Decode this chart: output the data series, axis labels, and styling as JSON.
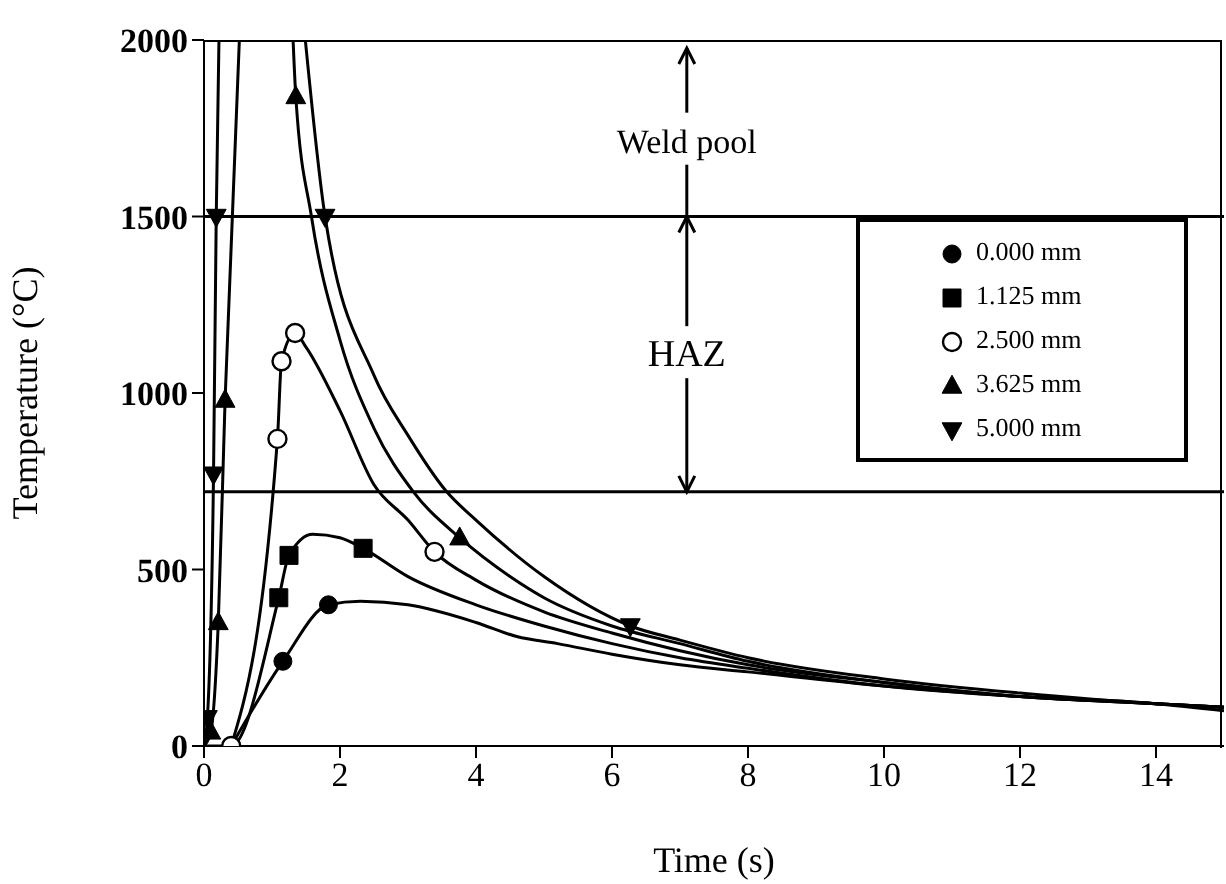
{
  "chart_data": {
    "type": "line",
    "xlabel": "Time (s)",
    "ylabel": "Temperature (°C)",
    "xlim": [
      0,
      15
    ],
    "xticks": [
      0,
      2,
      4,
      6,
      8,
      10,
      12,
      14
    ],
    "ylim": [
      0,
      2000
    ],
    "yticks": [
      0,
      500,
      1000,
      1500,
      2000
    ],
    "legend": "right",
    "grid": false,
    "line_style": "solid",
    "ref_lines": [
      {
        "axis": "y",
        "value": 1500,
        "color": "#000000"
      },
      {
        "axis": "y",
        "value": 720,
        "color": "#000000"
      }
    ],
    "annotations": [
      {
        "text": "Weld pool",
        "x": 7.1,
        "y": 1500
      },
      {
        "text": "HAZ",
        "x": 7.1,
        "y": 720
      }
    ],
    "series": [
      {
        "color": "#000000",
        "marker": "none",
        "x": [
          0.43,
          1.16,
          1.83,
          2.3,
          3,
          4,
          4.6,
          5.2,
          6,
          7,
          8,
          10,
          12,
          14,
          15
        ],
        "values": [
          10,
          240,
          400,
          410,
          400,
          350,
          310,
          290,
          260,
          230,
          210,
          170,
          140,
          120,
          100
        ]
      },
      {
        "color": "#000000",
        "marker": "none",
        "x": [
          0,
          0.4,
          1.1,
          1.25,
          1.6,
          2,
          2.34,
          3,
          4,
          5,
          6,
          7,
          8,
          10,
          12,
          14,
          15
        ],
        "values": [
          0,
          0,
          420,
          540,
          600,
          590,
          560,
          480,
          400,
          340,
          290,
          250,
          220,
          170,
          140,
          120,
          110
        ]
      },
      {
        "color": "#000000",
        "marker": "none",
        "x": [
          0.4,
          1.08,
          1.14,
          1.34,
          1.5,
          2,
          2.5,
          3,
          3.39,
          4,
          5,
          6,
          7,
          8,
          10,
          12,
          14,
          15
        ],
        "values": [
          0,
          870,
          1090,
          1170,
          1130,
          950,
          740,
          640,
          550,
          470,
          380,
          320,
          270,
          230,
          180,
          140,
          120,
          110
        ]
      },
      {
        "color": "#000000",
        "marker": "none",
        "x": [
          0,
          0.1,
          0.21,
          0.31,
          0.52,
          0.9,
          1.31,
          1.35,
          1.58,
          2,
          2.5,
          3.08,
          3.76,
          4.5,
          5,
          6,
          7,
          8,
          10,
          12,
          14,
          15
        ],
        "values": [
          0,
          40,
          350,
          980,
          2000,
          null,
          2000,
          1840,
          1500,
          1150,
          900,
          720,
          590,
          480,
          420,
          340,
          290,
          240,
          180,
          140,
          120,
          110
        ]
      },
      {
        "color": "#000000",
        "marker": "none",
        "x": [
          0,
          0.05,
          0.14,
          0.18,
          0.22,
          0.9,
          1.49,
          1.78,
          2.5,
          3,
          3.57,
          4,
          5,
          6.27,
          7,
          8,
          10,
          12,
          14,
          15
        ],
        "values": [
          0,
          80,
          770,
          1500,
          2000,
          null,
          2000,
          1500,
          1050,
          880,
          720,
          640,
          480,
          340,
          300,
          250,
          190,
          150,
          120,
          110
        ]
      },
      {
        "type": "scatter",
        "name": "0.000 mm",
        "color": "#000000",
        "marker": "circle",
        "x": [
          1.16,
          1.83
        ],
        "values": [
          240,
          400
        ]
      },
      {
        "type": "scatter",
        "name": "1.125 mm",
        "color": "#000000",
        "marker": "square",
        "x": [
          1.1,
          1.25,
          2.34
        ],
        "values": [
          420,
          540,
          560
        ]
      },
      {
        "type": "scatter",
        "name": "2.500 mm",
        "color": "#000000",
        "marker": "circle-open",
        "x": [
          0.4,
          1.08,
          1.14,
          1.34,
          3.39
        ],
        "values": [
          0,
          870,
          1090,
          1170,
          550
        ]
      },
      {
        "type": "scatter",
        "name": "3.625 mm",
        "color": "#000000",
        "marker": "triangle",
        "x": [
          0.1,
          0.21,
          0.31,
          1.35,
          3.76
        ],
        "values": [
          40,
          350,
          980,
          1840,
          590
        ]
      },
      {
        "type": "scatter",
        "name": "5.000 mm",
        "color": "#000000",
        "marker": "triangle-down",
        "x": [
          0.05,
          0.14,
          0.18,
          1.78,
          6.27
        ],
        "values": [
          80,
          770,
          1500,
          1500,
          340
        ]
      }
    ]
  }
}
